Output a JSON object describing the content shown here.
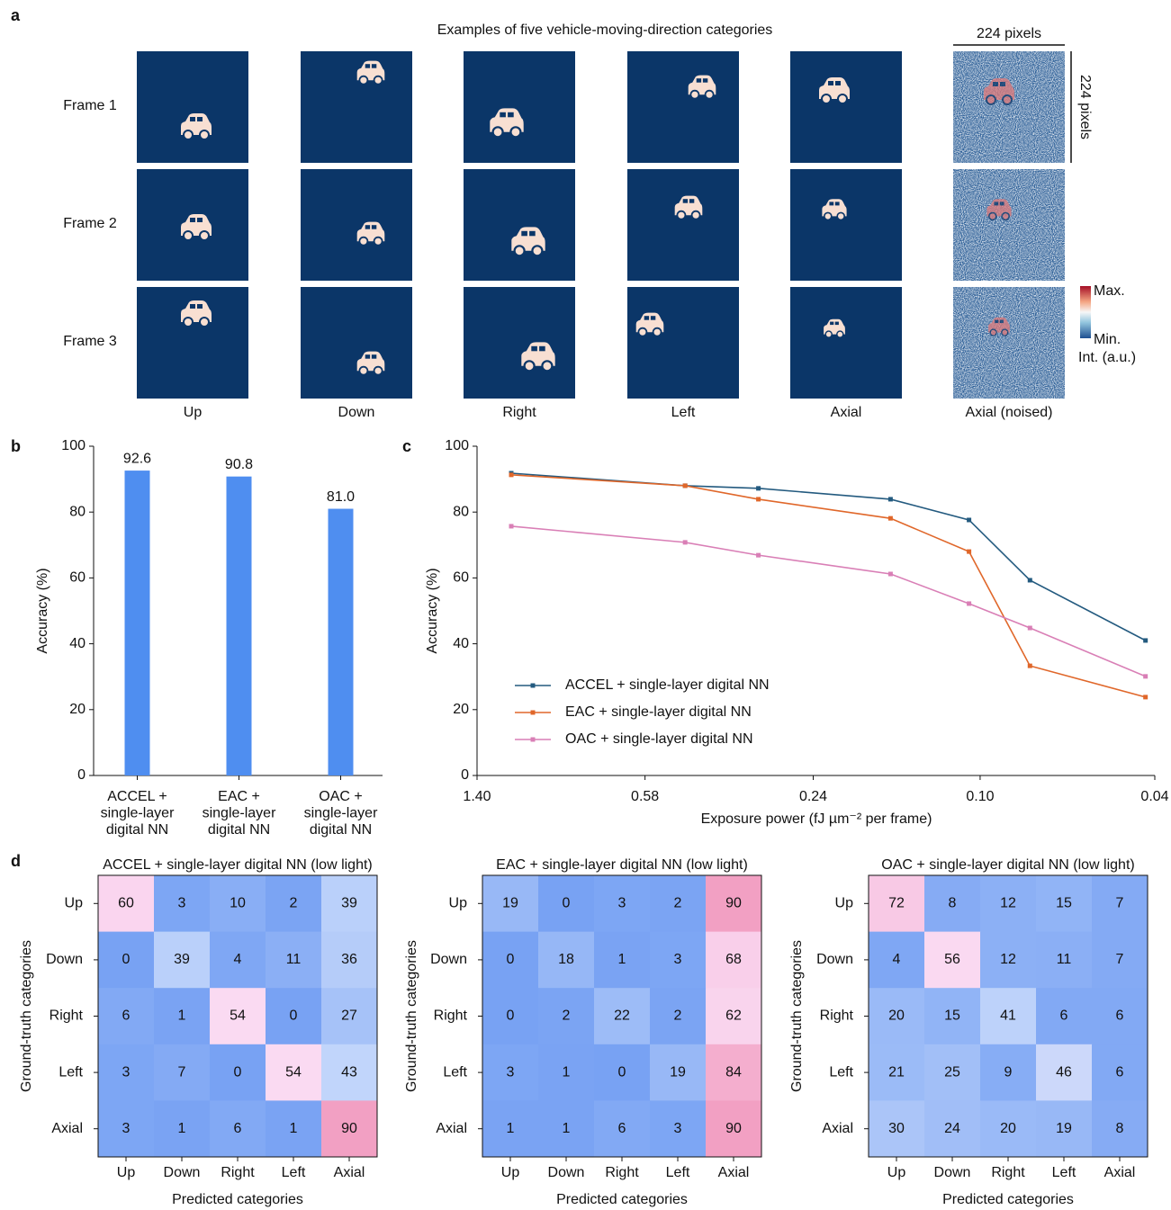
{
  "panel_a": {
    "panel": "a",
    "title": "Examples of five vehicle-moving-direction categories",
    "rows": [
      "Frame 1",
      "Frame 2",
      "Frame 3"
    ],
    "columns": [
      "Up",
      "Down",
      "Right",
      "Left",
      "Axial",
      "Axial (noised)"
    ],
    "scale_labels": [
      "224 pixels",
      "224 pixels"
    ],
    "colorbar": {
      "max": "Max.",
      "min": "Min.",
      "label": "Int. (a.u.)"
    }
  },
  "chart_data": [
    {
      "type": "bar",
      "panel": "b",
      "ylabel": "Accuracy (%)",
      "categories": [
        [
          "ACCEL +",
          "single-layer",
          "digital NN"
        ],
        [
          "EAC +",
          "single-layer",
          "digital NN"
        ],
        [
          "OAC +",
          "single-layer",
          "digital NN"
        ]
      ],
      "values": [
        92.6,
        90.8,
        81.0
      ],
      "value_labels": [
        "92.6",
        "90.8",
        "81.0"
      ],
      "color": "#4f8ef0",
      "ylim": [
        0,
        100
      ],
      "yticks": [
        0,
        20,
        40,
        60,
        80,
        100
      ]
    },
    {
      "type": "line",
      "panel": "c",
      "ylabel": "Accuracy (%)",
      "xlabel": "Exposure power (fJ µm⁻² per frame)",
      "xscale": "log",
      "xlim": [
        1.4,
        0.04
      ],
      "xticks": [
        {
          "value": 1.4,
          "label": "1.40"
        },
        0.58,
        0.24,
        {
          "value": 0.1,
          "label": "0.10"
        },
        0.04
      ],
      "ylim": [
        0,
        100
      ],
      "yticks": [
        0,
        20,
        40,
        60,
        80,
        100
      ],
      "legend": "lower left",
      "x": [
        1.17,
        0.47,
        0.32,
        0.16,
        0.106,
        0.077,
        0.042
      ],
      "series": [
        {
          "name": "ACCEL + single-layer digital NN",
          "color": "#235a7f",
          "values": [
            91.8,
            88.0,
            87.2,
            83.9,
            77.6,
            59.3,
            41.0
          ]
        },
        {
          "name": "EAC + single-layer digital NN",
          "color": "#e0672a",
          "values": [
            91.3,
            88.0,
            83.9,
            78.1,
            68.0,
            33.3,
            23.8
          ]
        },
        {
          "name": "OAC + single-layer digital NN",
          "color": "#d97fb6",
          "values": [
            75.7,
            70.8,
            66.9,
            61.2,
            52.2,
            44.8,
            30.1
          ]
        }
      ]
    },
    {
      "type": "heatmap",
      "panel": "d",
      "title": "ACCEL + single-layer digital NN (low light)",
      "xlabel": "Predicted categories",
      "ylabel": "Ground-truth categories",
      "x_categories": [
        "Up",
        "Down",
        "Right",
        "Left",
        "Axial"
      ],
      "y_categories": [
        "Up",
        "Down",
        "Right",
        "Left",
        "Axial"
      ],
      "values": [
        [
          60,
          3,
          10,
          2,
          39
        ],
        [
          0,
          39,
          4,
          11,
          36
        ],
        [
          6,
          1,
          54,
          0,
          27
        ],
        [
          3,
          7,
          0,
          54,
          43
        ],
        [
          3,
          1,
          6,
          1,
          90
        ]
      ]
    },
    {
      "type": "heatmap",
      "title": "EAC + single-layer digital NN  (low light)",
      "xlabel": "Predicted categories",
      "ylabel": "Ground-truth categories",
      "x_categories": [
        "Up",
        "Down",
        "Right",
        "Left",
        "Axial"
      ],
      "y_categories": [
        "Up",
        "Down",
        "Right",
        "Left",
        "Axial"
      ],
      "values": [
        [
          19,
          0,
          3,
          2,
          90
        ],
        [
          0,
          18,
          1,
          3,
          68
        ],
        [
          0,
          2,
          22,
          2,
          62
        ],
        [
          3,
          1,
          0,
          19,
          84
        ],
        [
          1,
          1,
          6,
          3,
          90
        ]
      ]
    },
    {
      "type": "heatmap",
      "title": "OAC + single-layer digital NN (low light)",
      "xlabel": "Predicted categories",
      "ylabel": "Ground-truth categories",
      "x_categories": [
        "Up",
        "Down",
        "Right",
        "Left",
        "Axial"
      ],
      "y_categories": [
        "Up",
        "Down",
        "Right",
        "Left",
        "Axial"
      ],
      "values": [
        [
          72,
          8,
          12,
          15,
          7
        ],
        [
          4,
          56,
          12,
          11,
          7
        ],
        [
          20,
          15,
          41,
          6,
          6
        ],
        [
          21,
          25,
          9,
          46,
          6
        ],
        [
          30,
          24,
          20,
          19,
          8
        ]
      ]
    }
  ]
}
